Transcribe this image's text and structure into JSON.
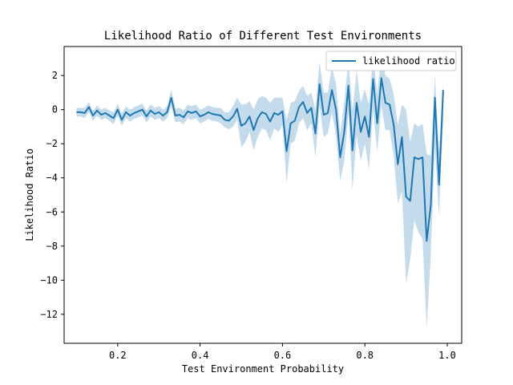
{
  "chart_data": {
    "type": "line",
    "title": "Likelihood Ratio of Different Test Environments",
    "xlabel": "Test Environment Probability",
    "ylabel": "Likelihood Ratio",
    "xlim": [
      0.07,
      1.035
    ],
    "ylim": [
      -13.7,
      3.7
    ],
    "xticks": [
      0.2,
      0.4,
      0.6,
      0.8,
      1.0
    ],
    "xtick_labels": [
      "0.2",
      "0.4",
      "0.6",
      "0.8",
      "1.0"
    ],
    "yticks": [
      2,
      0,
      -2,
      -4,
      -6,
      -8,
      -10,
      -12
    ],
    "ytick_labels": [
      "2",
      "0",
      "−2",
      "−4",
      "−6",
      "−8",
      "−10",
      "−12"
    ],
    "grid": false,
    "legend_position": "top-right",
    "line_color": "#1f77b4",
    "band_color": "#c4dbec",
    "series": [
      {
        "name": "likelihood ratio",
        "x": [
          0.1,
          0.11,
          0.12,
          0.13,
          0.14,
          0.15,
          0.16,
          0.17,
          0.18,
          0.19,
          0.2,
          0.21,
          0.22,
          0.23,
          0.24,
          0.25,
          0.26,
          0.27,
          0.28,
          0.29,
          0.3,
          0.31,
          0.32,
          0.33,
          0.34,
          0.35,
          0.36,
          0.37,
          0.38,
          0.39,
          0.4,
          0.41,
          0.42,
          0.43,
          0.44,
          0.45,
          0.46,
          0.47,
          0.48,
          0.49,
          0.5,
          0.51,
          0.52,
          0.53,
          0.54,
          0.55,
          0.56,
          0.57,
          0.58,
          0.59,
          0.6,
          0.61,
          0.62,
          0.63,
          0.64,
          0.65,
          0.66,
          0.67,
          0.68,
          0.69,
          0.7,
          0.71,
          0.72,
          0.73,
          0.74,
          0.75,
          0.76,
          0.77,
          0.78,
          0.79,
          0.8,
          0.81,
          0.82,
          0.83,
          0.84,
          0.85,
          0.86,
          0.87,
          0.88,
          0.89,
          0.9,
          0.91,
          0.92,
          0.93,
          0.94,
          0.95,
          0.96,
          0.97,
          0.98,
          0.99
        ],
        "y": [
          -0.15,
          -0.15,
          -0.2,
          0.15,
          -0.35,
          -0.05,
          -0.3,
          -0.2,
          -0.35,
          -0.5,
          0.0,
          -0.6,
          -0.15,
          -0.35,
          -0.2,
          -0.1,
          0.0,
          -0.4,
          -0.05,
          -0.25,
          -0.15,
          -0.35,
          -0.15,
          0.7,
          -0.35,
          -0.3,
          -0.45,
          -0.1,
          -0.2,
          -0.1,
          -0.4,
          -0.3,
          -0.15,
          -0.25,
          -0.3,
          -0.35,
          -0.6,
          -0.65,
          -0.4,
          0.05,
          -0.95,
          -0.8,
          -0.4,
          -1.2,
          -0.5,
          -0.15,
          -0.25,
          -0.7,
          -0.2,
          -0.3,
          -0.1,
          -2.45,
          -0.8,
          -0.65,
          0.15,
          0.45,
          -0.2,
          0.1,
          -1.4,
          1.5,
          -0.3,
          -0.2,
          1.15,
          0.0,
          -2.8,
          -1.3,
          1.4,
          -2.4,
          0.4,
          -1.3,
          -0.4,
          -1.6,
          1.8,
          -0.8,
          1.85,
          0.4,
          0.3,
          -0.9,
          -3.2,
          -1.6,
          -5.1,
          -5.35,
          -2.8,
          -2.9,
          -2.8,
          -7.7,
          -5.6,
          0.7,
          -4.4,
          1.15
        ],
        "lower": [
          -0.4,
          -0.4,
          -0.5,
          -0.15,
          -0.65,
          -0.35,
          -0.6,
          -0.5,
          -0.65,
          -0.85,
          -0.35,
          -0.95,
          -0.5,
          -0.7,
          -0.55,
          -0.45,
          -0.35,
          -0.75,
          -0.4,
          -0.6,
          -0.5,
          -0.7,
          -0.5,
          0.2,
          -0.75,
          -0.7,
          -0.85,
          -0.5,
          -0.6,
          -0.5,
          -0.8,
          -0.7,
          -0.55,
          -0.65,
          -0.7,
          -0.8,
          -1.05,
          -1.15,
          -1.0,
          -0.6,
          -2.2,
          -1.9,
          -1.3,
          -2.4,
          -1.6,
          -1.1,
          -1.2,
          -1.8,
          -1.1,
          -1.3,
          -0.9,
          -4.3,
          -2.0,
          -1.8,
          -0.8,
          -0.5,
          -1.2,
          -0.8,
          -2.8,
          0.2,
          -1.6,
          -1.4,
          -0.2,
          -1.5,
          -4.2,
          -3.0,
          -0.2,
          -4.7,
          -1.5,
          -3.0,
          -2.0,
          -3.5,
          0.0,
          -2.5,
          0.2,
          -1.2,
          -1.2,
          -2.7,
          -5.5,
          -4.8,
          -10.2,
          -8.8,
          -6.5,
          -7.2,
          -7.6,
          -12.8,
          -8.5,
          -2.2,
          -6.3,
          -0.5
        ],
        "upper": [
          0.1,
          0.1,
          0.1,
          0.45,
          -0.05,
          0.25,
          0.0,
          0.1,
          -0.05,
          -0.15,
          0.35,
          -0.25,
          0.2,
          0.0,
          0.15,
          0.25,
          0.35,
          -0.05,
          0.3,
          0.1,
          0.2,
          0.0,
          0.2,
          1.2,
          0.05,
          0.1,
          -0.05,
          0.3,
          0.2,
          0.3,
          0.0,
          0.1,
          0.25,
          0.15,
          0.1,
          0.1,
          -0.15,
          -0.15,
          0.2,
          0.7,
          0.3,
          0.3,
          0.5,
          0.0,
          0.6,
          0.8,
          0.7,
          0.4,
          0.7,
          0.7,
          0.7,
          -0.6,
          0.4,
          0.5,
          1.1,
          1.4,
          0.8,
          1.0,
          0.0,
          2.8,
          1.0,
          1.0,
          2.5,
          1.5,
          -1.4,
          0.4,
          3.0,
          -0.1,
          2.3,
          0.4,
          1.2,
          0.3,
          3.2,
          0.9,
          3.3,
          2.0,
          1.8,
          0.9,
          -0.9,
          0.3,
          0.0,
          -1.9,
          -0.8,
          -1.0,
          -0.8,
          -2.6,
          -2.7,
          2.0,
          -2.5,
          1.6
        ]
      }
    ]
  }
}
